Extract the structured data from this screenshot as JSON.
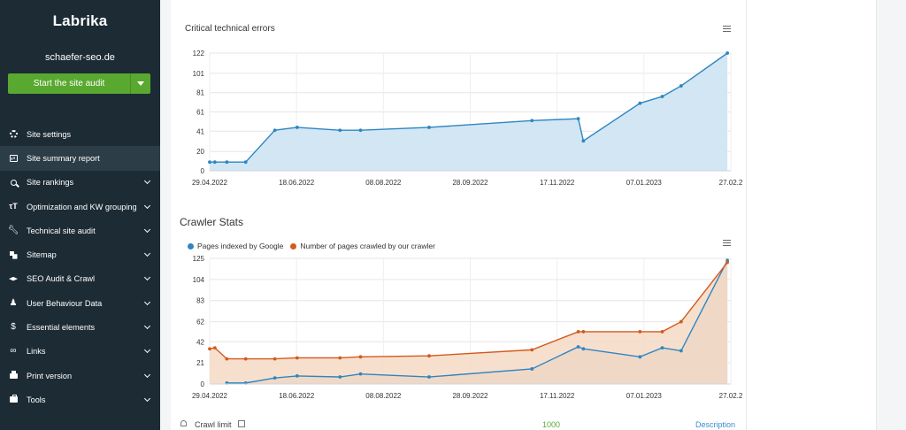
{
  "sidebar": {
    "logo": "Labrika",
    "site_name": "schaefer-seo.de",
    "audit_button": "Start the site audit",
    "items": [
      {
        "label": "Site settings",
        "icon": "gear-icon",
        "chevron": false,
        "active": false
      },
      {
        "label": "Site summary report",
        "icon": "report-icon",
        "chevron": false,
        "active": true
      },
      {
        "label": "Site rankings",
        "icon": "search-icon",
        "chevron": true,
        "active": false
      },
      {
        "label": "Optimization and KW grouping",
        "icon": "text-icon",
        "chevron": true,
        "active": false
      },
      {
        "label": "Technical site audit",
        "icon": "wrench-icon",
        "chevron": true,
        "active": false
      },
      {
        "label": "Sitemap",
        "icon": "sitemap-icon",
        "chevron": true,
        "active": false
      },
      {
        "label": "SEO Audit & Crawl",
        "icon": "graduation-cap-icon",
        "chevron": true,
        "active": false
      },
      {
        "label": "User Behaviour Data",
        "icon": "user-icon",
        "chevron": true,
        "active": false
      },
      {
        "label": "Essential elements",
        "icon": "dollar-icon",
        "chevron": true,
        "active": false
      },
      {
        "label": "Links",
        "icon": "link-icon",
        "chevron": true,
        "active": false
      },
      {
        "label": "Print version",
        "icon": "printer-icon",
        "chevron": true,
        "active": false
      },
      {
        "label": "Tools",
        "icon": "toolbox-icon",
        "chevron": true,
        "active": false
      }
    ]
  },
  "colors": {
    "sidebar_bg": "#1c2b34",
    "sidebar_active": "#2d3d48",
    "accent_green": "#59a82f",
    "series_blue": "#2e86c1",
    "series_orange": "#d35a1c",
    "area_blue": "#d2e6f3",
    "area_orange": "#f6d9c6",
    "area_grey": "#cccccc"
  },
  "chart_data": [
    {
      "type": "area",
      "title": "Critical technical errors",
      "xlabel": "",
      "ylabel": "",
      "x_ticks": [
        "29.04.2022",
        "18.06.2022",
        "08.08.2022",
        "28.09.2022",
        "17.11.2022",
        "07.01.2023",
        "27.02.2"
      ],
      "y_ticks": [
        0,
        20,
        41,
        61,
        81,
        101,
        122
      ],
      "ylim": [
        0,
        122
      ],
      "xlim": [
        0,
        304
      ],
      "grid": true,
      "series": [
        {
          "x": [
            0,
            3,
            10,
            21,
            38,
            51,
            76,
            88,
            128,
            188,
            215,
            218,
            251,
            264,
            275,
            302
          ],
          "values": [
            9,
            9,
            9,
            9,
            42,
            45,
            42,
            42,
            45,
            52,
            54,
            31,
            70,
            77,
            88,
            122
          ]
        }
      ]
    },
    {
      "type": "area",
      "title": "Crawler Stats",
      "xlabel": "",
      "ylabel": "",
      "x_ticks": [
        "29.04.2022",
        "18.06.2022",
        "08.08.2022",
        "28.09.2022",
        "17.11.2022",
        "07.01.2023",
        "27.02.2"
      ],
      "y_ticks": [
        0,
        21,
        42,
        62,
        83,
        104,
        125
      ],
      "ylim": [
        0,
        125
      ],
      "xlim": [
        0,
        304
      ],
      "grid": true,
      "legend": "top-left",
      "series": [
        {
          "name": "Pages indexed by Google",
          "x": [
            10,
            21,
            38,
            51,
            76,
            88,
            128,
            188,
            215,
            218,
            251,
            264,
            275,
            302
          ],
          "values": [
            1,
            1,
            6,
            8,
            7,
            10,
            7,
            15,
            37,
            35,
            27,
            36,
            33,
            123
          ]
        },
        {
          "name": "Number of pages crawled by our crawler",
          "x": [
            0,
            3,
            10,
            21,
            38,
            51,
            76,
            88,
            128,
            188,
            215,
            218,
            251,
            264,
            275,
            302
          ],
          "values": [
            35,
            36,
            25,
            25,
            25,
            26,
            26,
            27,
            28,
            34,
            52,
            52,
            52,
            52,
            62,
            121
          ]
        }
      ]
    }
  ],
  "crawl": {
    "label": "Crawl limit",
    "value": "1000",
    "description": "Description"
  }
}
